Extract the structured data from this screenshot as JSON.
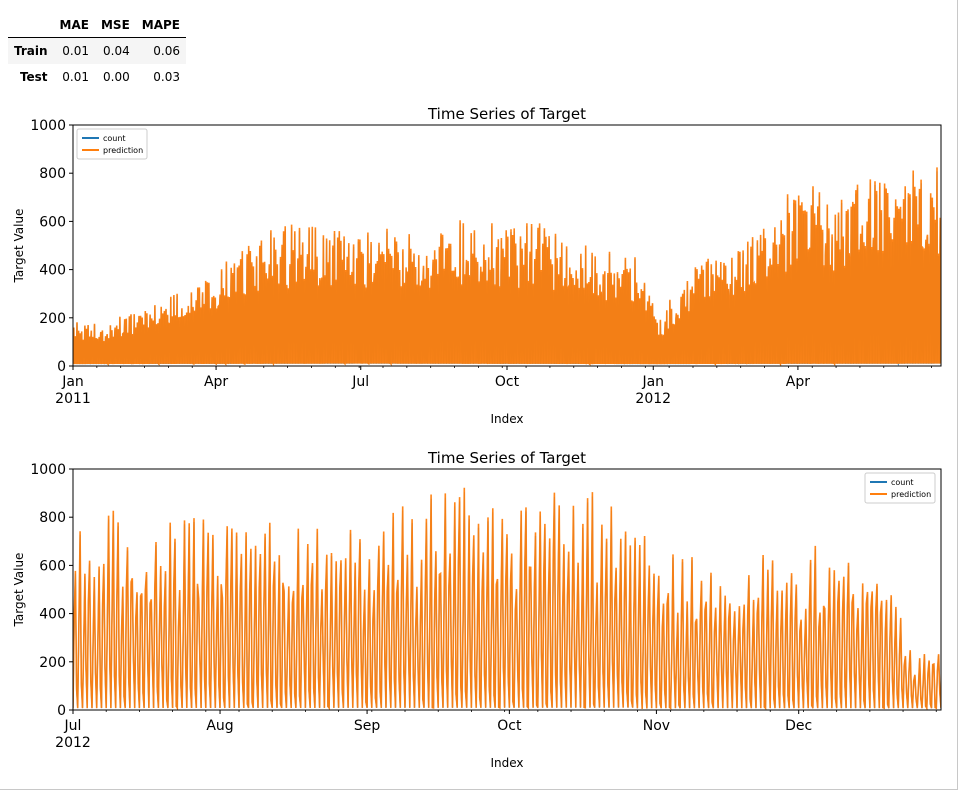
{
  "metrics_table": {
    "columns": [
      "",
      "MAE",
      "MSE",
      "MAPE"
    ],
    "rows": [
      {
        "label": "Train",
        "values": [
          "0.01",
          "0.04",
          "0.06"
        ]
      },
      {
        "label": "Test",
        "values": [
          "0.01",
          "0.00",
          "0.03"
        ]
      }
    ]
  },
  "colors": {
    "count": "#1f77b4",
    "prediction": "#ff7f0e",
    "axis": "#000000"
  },
  "chart_data": [
    {
      "type": "line",
      "title": "Time Series of Target",
      "xlabel": "Index",
      "ylabel": "Target Value",
      "ylim": [
        0,
        1000
      ],
      "yticks": [
        0,
        200,
        400,
        600,
        800,
        1000
      ],
      "xlim": [
        "2011-01-01",
        "2012-06-30"
      ],
      "xticks": [
        {
          "label": "Jan",
          "sub": "2011",
          "date": "2011-01-01"
        },
        {
          "label": "Apr",
          "sub": "",
          "date": "2011-04-01"
        },
        {
          "label": "Jul",
          "sub": "",
          "date": "2011-07-01"
        },
        {
          "label": "Oct",
          "sub": "",
          "date": "2011-10-01"
        },
        {
          "label": "Jan",
          "sub": "2012",
          "date": "2012-01-01"
        },
        {
          "label": "Apr",
          "sub": "",
          "date": "2012-04-01"
        }
      ],
      "legend_loc": "upper left",
      "grid": false,
      "series": [
        {
          "name": "count",
          "color": "#1f77b4"
        },
        {
          "name": "prediction",
          "color": "#ff7f0e"
        }
      ],
      "daily_peak": {
        "dates": [
          "2011-01-01",
          "2011-01-20",
          "2011-02-10",
          "2011-03-01",
          "2011-03-20",
          "2011-04-05",
          "2011-04-20",
          "2011-05-10",
          "2011-06-01",
          "2011-06-20",
          "2011-07-10",
          "2011-08-01",
          "2011-08-20",
          "2011-09-10",
          "2011-10-01",
          "2011-10-20",
          "2011-11-10",
          "2011-12-01",
          "2011-12-20",
          "2012-01-05",
          "2012-01-20",
          "2012-02-10",
          "2012-03-01",
          "2012-03-20",
          "2012-04-05",
          "2012-04-20",
          "2012-05-10",
          "2012-06-01",
          "2012-06-20",
          "2012-06-30"
        ],
        "values": [
          200,
          180,
          230,
          290,
          330,
          420,
          530,
          580,
          600,
          570,
          580,
          560,
          590,
          620,
          580,
          600,
          520,
          480,
          460,
          200,
          380,
          480,
          520,
          650,
          850,
          700,
          760,
          820,
          850,
          820
        ]
      },
      "daily_trough": {
        "dates": [
          "2011-01-01",
          "2011-07-01",
          "2012-01-01",
          "2012-06-30"
        ],
        "values": [
          8,
          10,
          8,
          10
        ]
      }
    },
    {
      "type": "line",
      "title": "Time Series of Target",
      "xlabel": "Index",
      "ylabel": "Target Value",
      "ylim": [
        0,
        1000
      ],
      "yticks": [
        0,
        200,
        400,
        600,
        800,
        1000
      ],
      "xlim": [
        "2012-07-01",
        "2012-12-31"
      ],
      "xticks": [
        {
          "label": "Jul",
          "sub": "2012",
          "date": "2012-07-01"
        },
        {
          "label": "Aug",
          "sub": "",
          "date": "2012-08-01"
        },
        {
          "label": "Sep",
          "sub": "",
          "date": "2012-09-01"
        },
        {
          "label": "Oct",
          "sub": "",
          "date": "2012-10-01"
        },
        {
          "label": "Nov",
          "sub": "",
          "date": "2012-11-01"
        },
        {
          "label": "Dec",
          "sub": "",
          "date": "2012-12-01"
        }
      ],
      "legend_loc": "upper right",
      "grid": false,
      "series": [
        {
          "name": "count",
          "color": "#1f77b4"
        },
        {
          "name": "prediction",
          "color": "#ff7f0e"
        }
      ],
      "daily_peak": {
        "dates": [
          "2012-07-01",
          "2012-07-10",
          "2012-07-20",
          "2012-08-01",
          "2012-08-10",
          "2012-08-20",
          "2012-09-01",
          "2012-09-10",
          "2012-09-20",
          "2012-10-01",
          "2012-10-10",
          "2012-10-20",
          "2012-10-28",
          "2012-11-01",
          "2012-11-10",
          "2012-11-20",
          "2012-12-01",
          "2012-12-10",
          "2012-12-20",
          "2012-12-24",
          "2012-12-31"
        ],
        "values": [
          720,
          860,
          800,
          830,
          860,
          820,
          880,
          900,
          940,
          880,
          960,
          900,
          780,
          690,
          650,
          640,
          660,
          720,
          640,
          250,
          300
        ]
      },
      "daily_trough": {
        "dates": [
          "2012-07-01",
          "2012-10-27",
          "2012-10-29",
          "2012-10-31",
          "2012-12-31"
        ],
        "values": [
          8,
          10,
          5,
          8,
          8
        ]
      }
    }
  ]
}
